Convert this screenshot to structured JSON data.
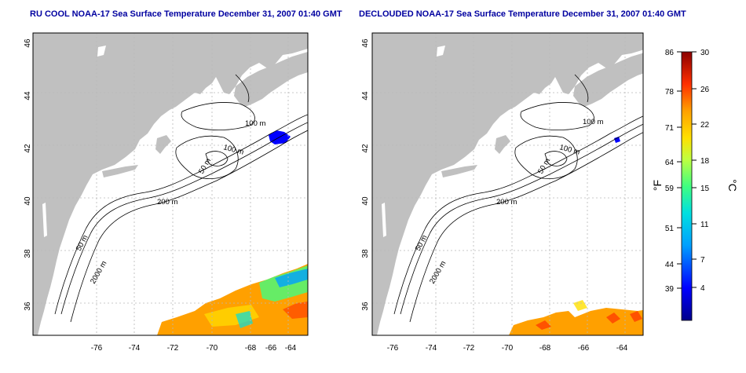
{
  "titles": {
    "left": "RU COOL NOAA-17 Sea Surface Temperature December 31, 2007 01:40 GMT",
    "right": "DECLOUDED NOAA-17 Sea Surface Temperature December 31, 2007 01:40 GMT"
  },
  "axes": {
    "lon_ticks": [
      "-76",
      "-74",
      "-72",
      "-70",
      "-68",
      "-66",
      "-64"
    ],
    "lat_ticks": [
      "36",
      "38",
      "40",
      "42",
      "44",
      "46"
    ]
  },
  "contour_labels": [
    "100 m",
    "100 m",
    "50 m",
    "200 m",
    "50 m",
    "2000 m"
  ],
  "colorbar": {
    "fahrenheit_ticks": [
      "86",
      "78",
      "71",
      "64",
      "59",
      "51",
      "44",
      "39"
    ],
    "celsius_ticks": [
      "30",
      "26",
      "22",
      "18",
      "15",
      "11",
      "7",
      "4"
    ],
    "unit_f": "°F",
    "unit_c": "°C"
  },
  "colors": {
    "land": "#c0c0c0",
    "title": "#0000a0",
    "grid": "#b8b8b8"
  }
}
